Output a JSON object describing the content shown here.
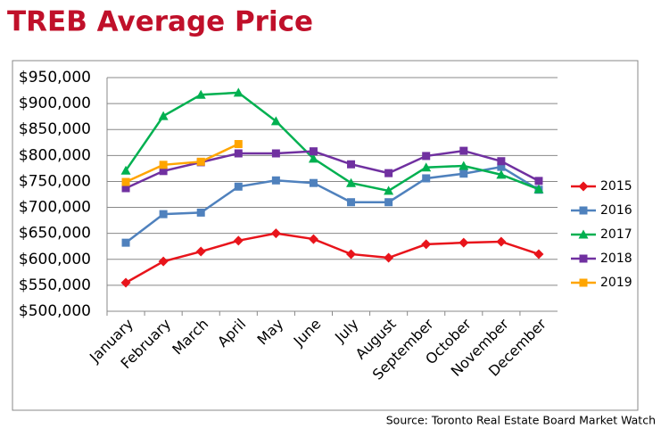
{
  "chart_data": {
    "type": "line",
    "title": "TREB Average Price",
    "source": "Source: Toronto Real Estate Board Market Watch",
    "categories": [
      "January",
      "February",
      "March",
      "April",
      "May",
      "June",
      "July",
      "August",
      "September",
      "October",
      "November",
      "December"
    ],
    "series": [
      {
        "name": "2015",
        "color": "#e8141b",
        "marker": "diamond",
        "values": [
          555000,
          596000,
          615000,
          636000,
          650000,
          639000,
          610000,
          603000,
          629000,
          632000,
          634000,
          610000
        ]
      },
      {
        "name": "2016",
        "color": "#4f81bd",
        "marker": "square",
        "values": [
          632000,
          687000,
          690000,
          740000,
          752000,
          747000,
          710000,
          710000,
          756000,
          765000,
          778000,
          734000
        ]
      },
      {
        "name": "2017",
        "color": "#00b050",
        "marker": "triangle",
        "values": [
          771000,
          876000,
          917000,
          921000,
          866000,
          794000,
          747000,
          732000,
          777000,
          780000,
          763000,
          735000
        ]
      },
      {
        "name": "2018",
        "color": "#7030a0",
        "marker": "square",
        "values": [
          737000,
          770000,
          787000,
          804000,
          804000,
          808000,
          783000,
          766000,
          799000,
          809000,
          789000,
          751000
        ]
      },
      {
        "name": "2019",
        "color": "#ffa500",
        "marker": "square",
        "values": [
          749000,
          782000,
          788000,
          822000,
          null,
          null,
          null,
          null,
          null,
          null,
          null,
          null
        ]
      }
    ],
    "ylim": [
      500000,
      950000
    ],
    "yticks": [
      {
        "value": 500000,
        "label": "$500,000"
      },
      {
        "value": 550000,
        "label": "$550,000"
      },
      {
        "value": 600000,
        "label": "$600,000"
      },
      {
        "value": 650000,
        "label": "$650,000"
      },
      {
        "value": 700000,
        "label": "$700,000"
      },
      {
        "value": 750000,
        "label": "$750,000"
      },
      {
        "value": 800000,
        "label": "$800,000"
      },
      {
        "value": 850000,
        "label": "$850,000"
      },
      {
        "value": 900000,
        "label": "$900,000"
      },
      {
        "value": 950000,
        "label": "$950,000"
      }
    ],
    "grid": true,
    "legend": "right"
  }
}
